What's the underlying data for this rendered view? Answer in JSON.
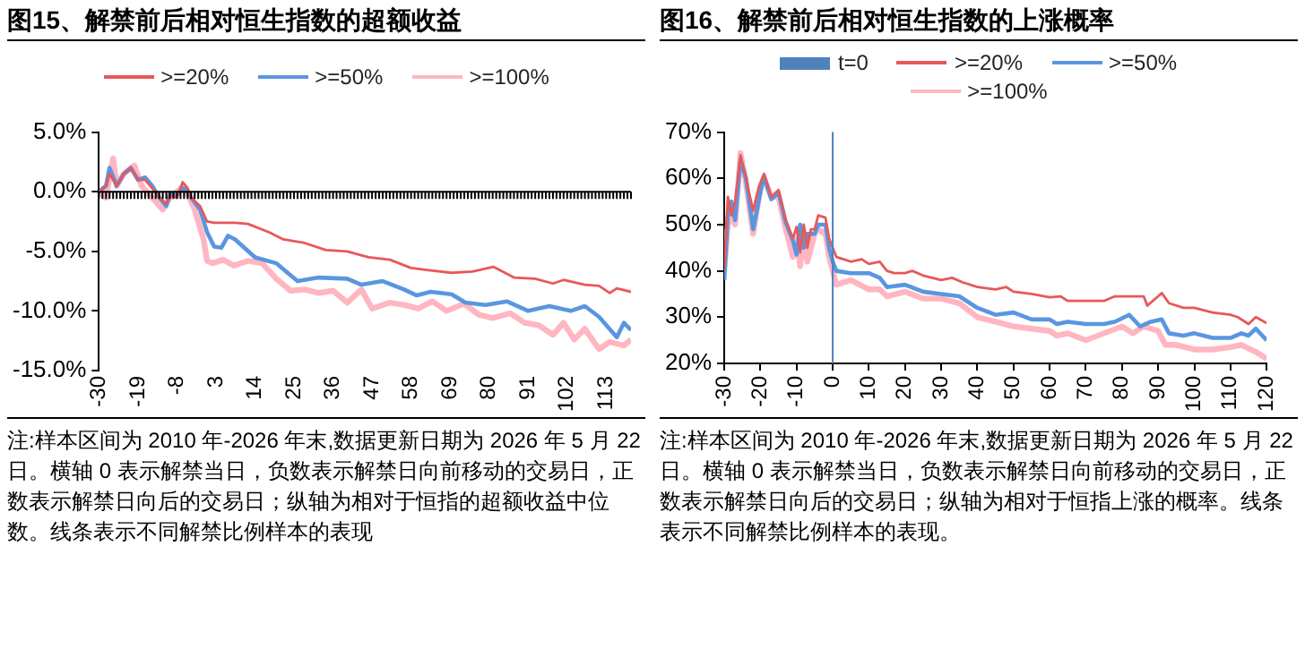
{
  "chart_data": [
    {
      "type": "line",
      "title": "图15、解禁前后相对恒生指数的超额收益",
      "legend": "top",
      "grid": false,
      "marker": "none",
      "line_style": "solid",
      "xlim": [
        -30,
        120
      ],
      "xticks": [
        -30,
        -19,
        -8,
        3,
        14,
        25,
        36,
        47,
        58,
        69,
        80,
        91,
        102,
        113
      ],
      "ref_lines": [
        {
          "axis": "y",
          "value": 0,
          "color": "#000000"
        }
      ],
      "ylim": [
        -15,
        5
      ],
      "yticks": [
        {
          "value": 5,
          "label": "5.0%"
        },
        {
          "value": 0,
          "label": "0.0%"
        },
        {
          "value": -5,
          "label": "-5.0%"
        },
        {
          "value": -10,
          "label": "-10.0%"
        },
        {
          "value": -15,
          "label": "-15.0%"
        }
      ],
      "series": [
        {
          "name": ">=20%",
          "color": "#e8585a",
          "x": [
            -30,
            -28,
            -27,
            -25,
            -23,
            -21,
            -19,
            -17,
            -15,
            -13,
            -11,
            -10,
            -8,
            -6.4,
            -5,
            -4,
            -1.5,
            0.5,
            2.5,
            8.4,
            12,
            18,
            22,
            28,
            34,
            40,
            46,
            52,
            58,
            63.5,
            69.4,
            75.3,
            81.2,
            87,
            93,
            98,
            101,
            107,
            111,
            114,
            116,
            120
          ],
          "values": [
            0,
            0.5,
            1.5,
            0.5,
            1.5,
            2,
            1,
            1,
            0.3,
            -0.5,
            -1,
            -0.3,
            -0.5,
            0.8,
            0.3,
            -0.5,
            -1.2,
            -2.5,
            -2.6,
            -2.6,
            -2.7,
            -3.4,
            -4,
            -4.3,
            -4.9,
            -5,
            -5.5,
            -5.7,
            -6.4,
            -6.6,
            -6.8,
            -6.7,
            -6.3,
            -7.2,
            -7.3,
            -7.7,
            -7.4,
            -7.8,
            -7.9,
            -8.5,
            -8.1,
            -8.4
          ]
        },
        {
          "name": ">=50%",
          "color": "#5a96e0",
          "x": [
            -30,
            -28,
            -27,
            -25,
            -23,
            -21,
            -19,
            -17,
            -15,
            -13,
            -11,
            -10,
            -8,
            -6.4,
            -5,
            -4,
            -1.5,
            0.5,
            2.5,
            4.5,
            6.4,
            8.4,
            14,
            20,
            24,
            26,
            32,
            40,
            44,
            50,
            56,
            59.6,
            63.5,
            69.4,
            73.3,
            79,
            85,
            91,
            97,
            103,
            107,
            111,
            116,
            118,
            120
          ],
          "values": [
            0,
            0.5,
            2,
            0.5,
            1.5,
            2,
            1,
            1.2,
            0.5,
            -0.5,
            -1.2,
            -0.2,
            -0.3,
            0.3,
            0,
            -0.5,
            -1.5,
            -3.4,
            -4.6,
            -4.7,
            -3.7,
            -4,
            -5.5,
            -6,
            -7,
            -7.5,
            -7.2,
            -7.3,
            -7.8,
            -7.5,
            -8.2,
            -8.7,
            -8.4,
            -8.6,
            -9.3,
            -9.5,
            -9.2,
            -10,
            -9.6,
            -10,
            -9.6,
            -10.5,
            -12.2,
            -11,
            -11.6
          ]
        },
        {
          "name": ">=100%",
          "color": "#ffb6c1",
          "x": [
            -30,
            -28,
            -26,
            -25,
            -23,
            -20,
            -18,
            -15,
            -12,
            -10,
            -8,
            -6,
            -3,
            -0.5,
            0.5,
            2,
            5,
            8,
            12,
            16,
            20,
            24,
            28,
            32,
            36,
            40,
            44,
            47,
            52,
            56,
            60,
            64,
            68,
            73,
            77,
            81,
            86,
            90,
            94,
            98,
            101,
            104,
            107,
            111,
            114,
            118,
            120
          ],
          "values": [
            0,
            -0.5,
            2.8,
            0.5,
            1.5,
            2.2,
            0.5,
            -0.5,
            -1.5,
            -0.5,
            0,
            0.5,
            -1.5,
            -4,
            -5.8,
            -6,
            -5.7,
            -6.2,
            -5.8,
            -6,
            -7.3,
            -8.3,
            -8.2,
            -8.5,
            -8.3,
            -9.3,
            -8.2,
            -9.8,
            -9.3,
            -9.5,
            -9.8,
            -9.2,
            -10,
            -9.4,
            -10.3,
            -10.6,
            -10.2,
            -11,
            -11.2,
            -12,
            -11,
            -12.4,
            -11.5,
            -13.2,
            -12.6,
            -12.9,
            -12.4
          ]
        }
      ],
      "annotations": [
        "注:样本区间为 2010 年-2026 年末,数据更新日期为 2026 年 5 月 22 日。横轴 0 表示解禁当日，负数表示解禁日向前移动的交易日，正数表示解禁日向后的交易日；纵轴为相对于恒指的超额收益中位数。线条表示不同解禁比例样本的表现"
      ]
    },
    {
      "type": "line",
      "title": "图16、解禁前后相对恒生指数的上涨概率",
      "legend": "top",
      "grid": false,
      "marker": "none",
      "line_style": "solid",
      "xlim": [
        -30,
        120
      ],
      "xticks": [
        -30,
        -20,
        -10,
        0,
        10,
        20,
        30,
        40,
        50,
        60,
        70,
        80,
        90,
        100,
        110,
        120
      ],
      "ylim": [
        20,
        70
      ],
      "yticks": [
        {
          "value": 20,
          "label": "20%"
        },
        {
          "value": 30,
          "label": "30%"
        },
        {
          "value": 40,
          "label": "40%"
        },
        {
          "value": 50,
          "label": "50%"
        },
        {
          "value": 60,
          "label": "60%"
        },
        {
          "value": 70,
          "label": "70%"
        }
      ],
      "ref_lines": [
        {
          "axis": "x",
          "value": 0,
          "label": "t=0",
          "color": "#4f81bd"
        }
      ],
      "series": [
        {
          "name": ">=20%",
          "color": "#e8585a",
          "x": [
            -30,
            -29,
            -28,
            -27,
            -25.5,
            -24,
            -22,
            -20.5,
            -19,
            -17,
            -15,
            -13,
            -11,
            -10,
            -9,
            -8,
            -7,
            -6,
            -5,
            -4,
            -2,
            -1,
            0,
            1,
            3,
            5,
            8,
            10,
            13,
            15,
            17,
            20,
            22,
            25,
            30,
            33,
            36,
            40,
            45,
            48,
            50,
            55,
            60,
            63,
            65,
            70,
            75,
            78,
            82,
            86,
            87,
            90,
            91,
            93,
            97,
            100,
            105,
            110,
            112,
            115,
            117,
            120
          ],
          "values": [
            40.4,
            56,
            52,
            55,
            65,
            60,
            53,
            58,
            61,
            56,
            57.5,
            51,
            47,
            49.5,
            44,
            50,
            45,
            49,
            49,
            52,
            51.5,
            47,
            45,
            43,
            42.5,
            42,
            42.5,
            41.5,
            42,
            40,
            39.5,
            39.5,
            40,
            39,
            38,
            38.5,
            37.5,
            36.5,
            36,
            36.5,
            35.5,
            35,
            34.3,
            34.5,
            33.5,
            33.5,
            33.5,
            34.5,
            34.5,
            34.5,
            32.5,
            34.5,
            35.2,
            33,
            32,
            32,
            31,
            30.5,
            30,
            28.5,
            30,
            28.7
          ]
        },
        {
          "name": ">=50%",
          "color": "#5a96e0",
          "x": [
            -30,
            -29,
            -28,
            -27,
            -25.5,
            -24,
            -22,
            -20,
            -19,
            -17,
            -15,
            -13,
            -11,
            -10,
            -9,
            -8,
            -7,
            -5,
            -4,
            -2,
            -1,
            0,
            1,
            5,
            10,
            13,
            15,
            20,
            25,
            30,
            35,
            40,
            45,
            50,
            55,
            60,
            62,
            65,
            70,
            75,
            78,
            82,
            85,
            88,
            91,
            93,
            97,
            100,
            105,
            110,
            113,
            115,
            117,
            120
          ],
          "values": [
            38,
            52,
            55,
            51,
            64,
            60,
            49,
            57,
            60.5,
            55.5,
            57,
            50.5,
            46.5,
            43.5,
            50,
            45,
            48,
            48,
            50,
            50,
            45,
            42,
            40,
            39.5,
            39.5,
            38.5,
            36.5,
            37,
            35.5,
            35,
            34.5,
            32,
            30.5,
            31,
            29.5,
            29.5,
            28.5,
            29,
            28.5,
            28.5,
            29,
            30.5,
            28,
            29,
            29.5,
            26.5,
            26,
            26.5,
            25.5,
            25.5,
            26.5,
            26,
            27.5,
            25
          ]
        },
        {
          "name": ">=100%",
          "color": "#ffb6c1",
          "x": [
            -30,
            -29,
            -28,
            -27,
            -25.5,
            -24,
            -22,
            -20,
            -19,
            -17,
            -15,
            -13,
            -11,
            -10,
            -9,
            -8,
            -7,
            -5,
            -4,
            -2,
            -1,
            0,
            1,
            5,
            10,
            13,
            15,
            20,
            25,
            30,
            35,
            40,
            45,
            50,
            55,
            60,
            62,
            65,
            70,
            75,
            80,
            83,
            86,
            90,
            92,
            95,
            100,
            105,
            110,
            113,
            117,
            120
          ],
          "values": [
            40,
            50,
            52,
            50,
            65.5,
            59,
            48,
            58,
            60,
            56,
            56,
            49,
            43,
            47,
            41,
            48,
            42,
            48,
            49,
            48,
            43,
            40,
            37,
            38,
            36,
            36,
            34.5,
            35.5,
            34,
            34,
            33,
            30,
            29,
            28,
            27.5,
            27,
            26,
            26.5,
            25,
            26.5,
            28,
            26.5,
            28,
            27,
            24,
            24,
            23,
            23,
            23.5,
            24,
            22.5,
            21
          ]
        }
      ],
      "annotations": [
        "注:样本区间为 2010 年-2026 年末,数据更新日期为 2026 年 5 月 22 日。横轴 0 表示解禁当日，负数表示解禁日向前移动的交易日，正数表示解禁日向后的交易日；纵轴为相对于恒指上涨的概率。线条表示不同解禁比例样本的表现。"
      ]
    }
  ]
}
